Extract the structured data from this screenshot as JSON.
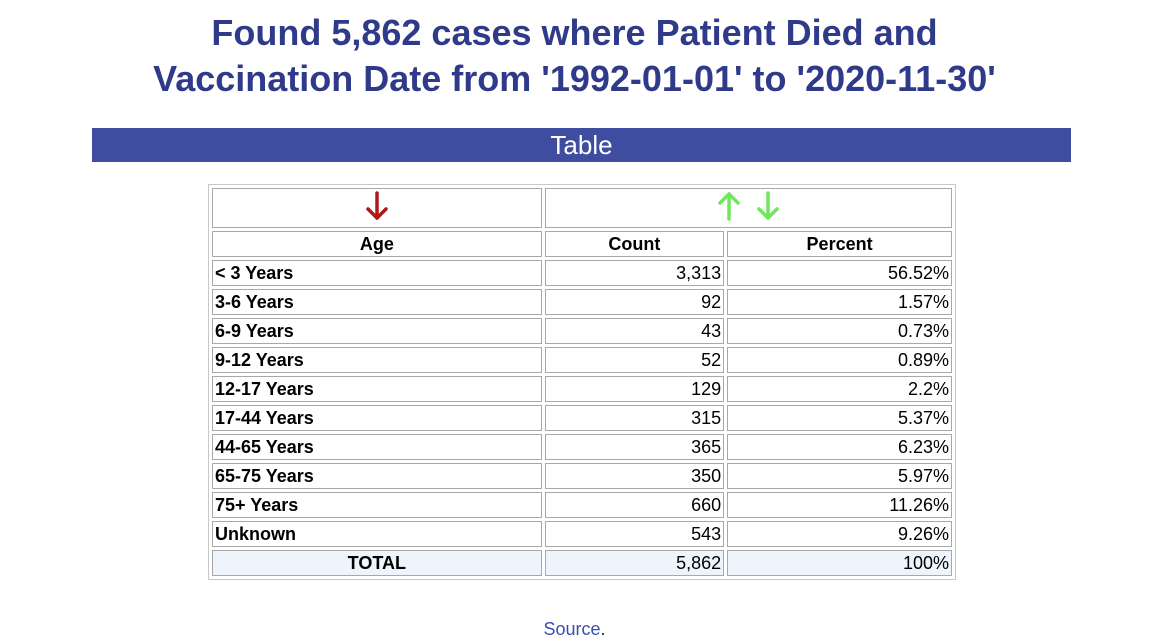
{
  "title": {
    "line1": "Found 5,862 cases where Patient Died and",
    "line2": "Vaccination Date from '1992-01-01' to '2020-11-30'"
  },
  "banner": {
    "label": "Table"
  },
  "sort_controls": {
    "age_sort_icon": "arrow-down-icon",
    "count_sort_icons": [
      "arrow-up-icon",
      "arrow-down-icon"
    ],
    "colors": {
      "age_arrow": "#b01818",
      "count_arrows": "#6ee85a"
    }
  },
  "table": {
    "headers": {
      "age": "Age",
      "count": "Count",
      "percent": "Percent"
    },
    "rows": [
      {
        "age": "< 3 Years",
        "count": "3,313",
        "percent": "56.52%"
      },
      {
        "age": "3-6 Years",
        "count": "92",
        "percent": "1.57%"
      },
      {
        "age": "6-9 Years",
        "count": "43",
        "percent": "0.73%"
      },
      {
        "age": "9-12 Years",
        "count": "52",
        "percent": "0.89%"
      },
      {
        "age": "12-17 Years",
        "count": "129",
        "percent": "2.2%"
      },
      {
        "age": "17-44 Years",
        "count": "315",
        "percent": "5.37%"
      },
      {
        "age": "44-65 Years",
        "count": "365",
        "percent": "6.23%"
      },
      {
        "age": "65-75 Years",
        "count": "350",
        "percent": "5.97%"
      },
      {
        "age": "75+ Years",
        "count": "660",
        "percent": "11.26%"
      },
      {
        "age": "Unknown",
        "count": "543",
        "percent": "9.26%"
      }
    ],
    "total": {
      "label": "TOTAL",
      "count": "5,862",
      "percent": "100%"
    }
  },
  "footer": {
    "source_label": "Source",
    "source_suffix": "."
  }
}
